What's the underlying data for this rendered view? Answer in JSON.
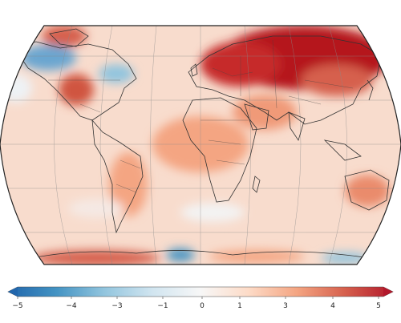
{
  "map": {
    "projection": "Robinson",
    "colors": {
      "ocean_base": "#f7d9c9",
      "very_warm": "#b5121b",
      "warm": "#d6604d",
      "mild_warm": "#f4a582",
      "neutral": "#f7f7f7",
      "cool": "#92c5de",
      "cold": "#4393c3",
      "outline": "#333333",
      "grid": "#888888"
    }
  },
  "colorbar": {
    "ticks": [
      "−5",
      "−4",
      "−3",
      "−1",
      "0",
      "1",
      "3",
      "4",
      "5"
    ],
    "gradient": [
      "#2166ac",
      "#4393c3",
      "#92c5de",
      "#d1e5f0",
      "#f7f7f7",
      "#fddbc7",
      "#f4a582",
      "#d6604d",
      "#b2182b"
    ]
  }
}
